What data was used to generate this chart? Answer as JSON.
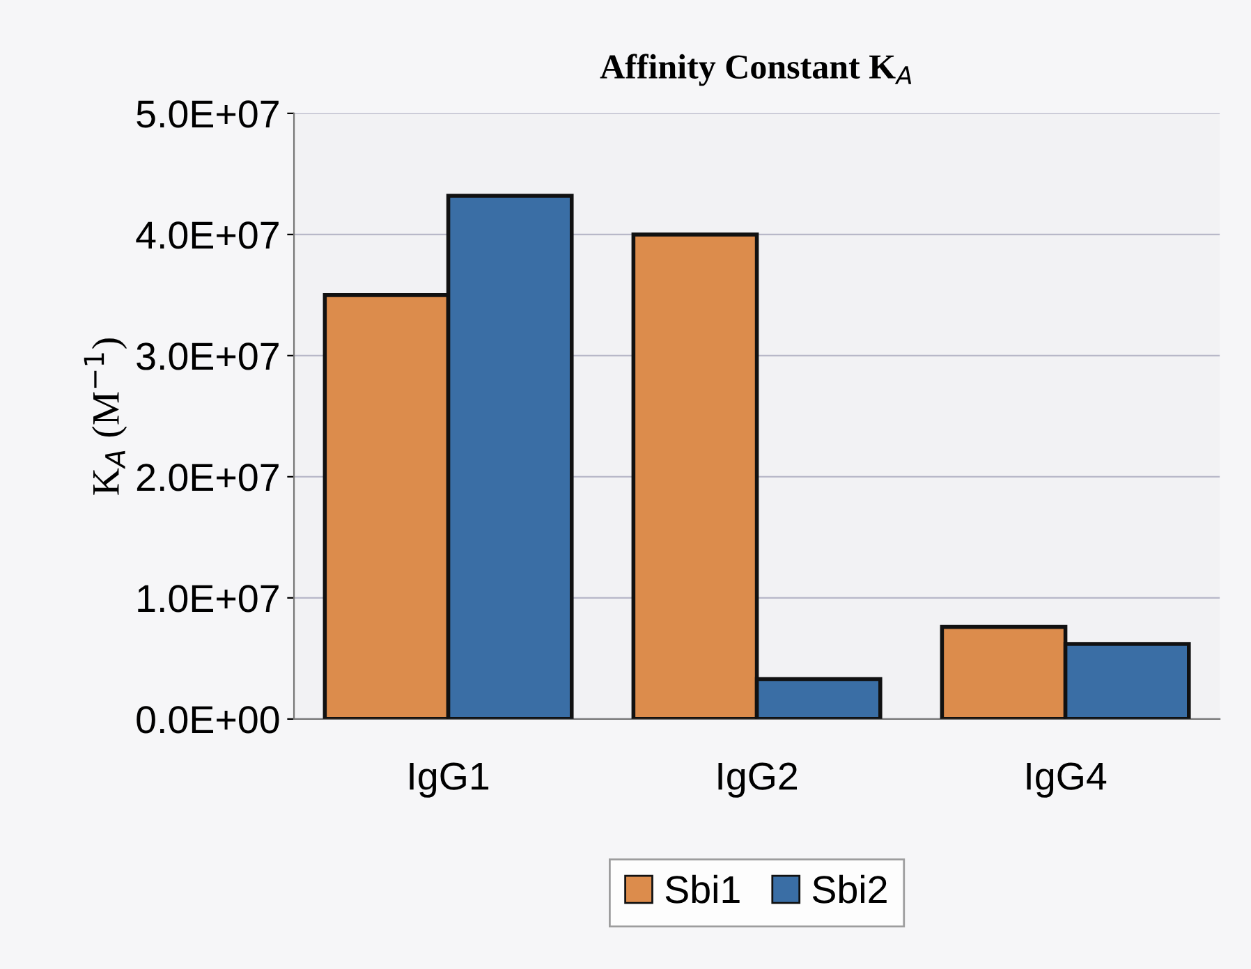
{
  "chart_data": {
    "type": "bar",
    "title": "Affinity Constant K$_{A}$",
    "ylabel": "K$_{A}$ (M$^{−1}$)",
    "categories": [
      "IgG1",
      "IgG2",
      "IgG4"
    ],
    "series": [
      {
        "name": "Sbi1",
        "color": "#dc8c4c",
        "values": [
          35000000,
          40000000,
          7600000
        ]
      },
      {
        "name": "Sbi2",
        "color": "#3a6ea5",
        "values": [
          43200000,
          3300000,
          6200000
        ]
      }
    ],
    "ylim": [
      0,
      50000000
    ],
    "yticks": [
      {
        "value": 0,
        "label": "0.0E+00"
      },
      {
        "value": 10000000,
        "label": "1.0E+07"
      },
      {
        "value": 20000000,
        "label": "2.0E+07"
      },
      {
        "value": 30000000,
        "label": "3.0E+07"
      },
      {
        "value": 40000000,
        "label": "4.0E+07"
      },
      {
        "value": 50000000,
        "label": "5.0E+07"
      }
    ],
    "grid": "y",
    "legend": "bottom"
  }
}
